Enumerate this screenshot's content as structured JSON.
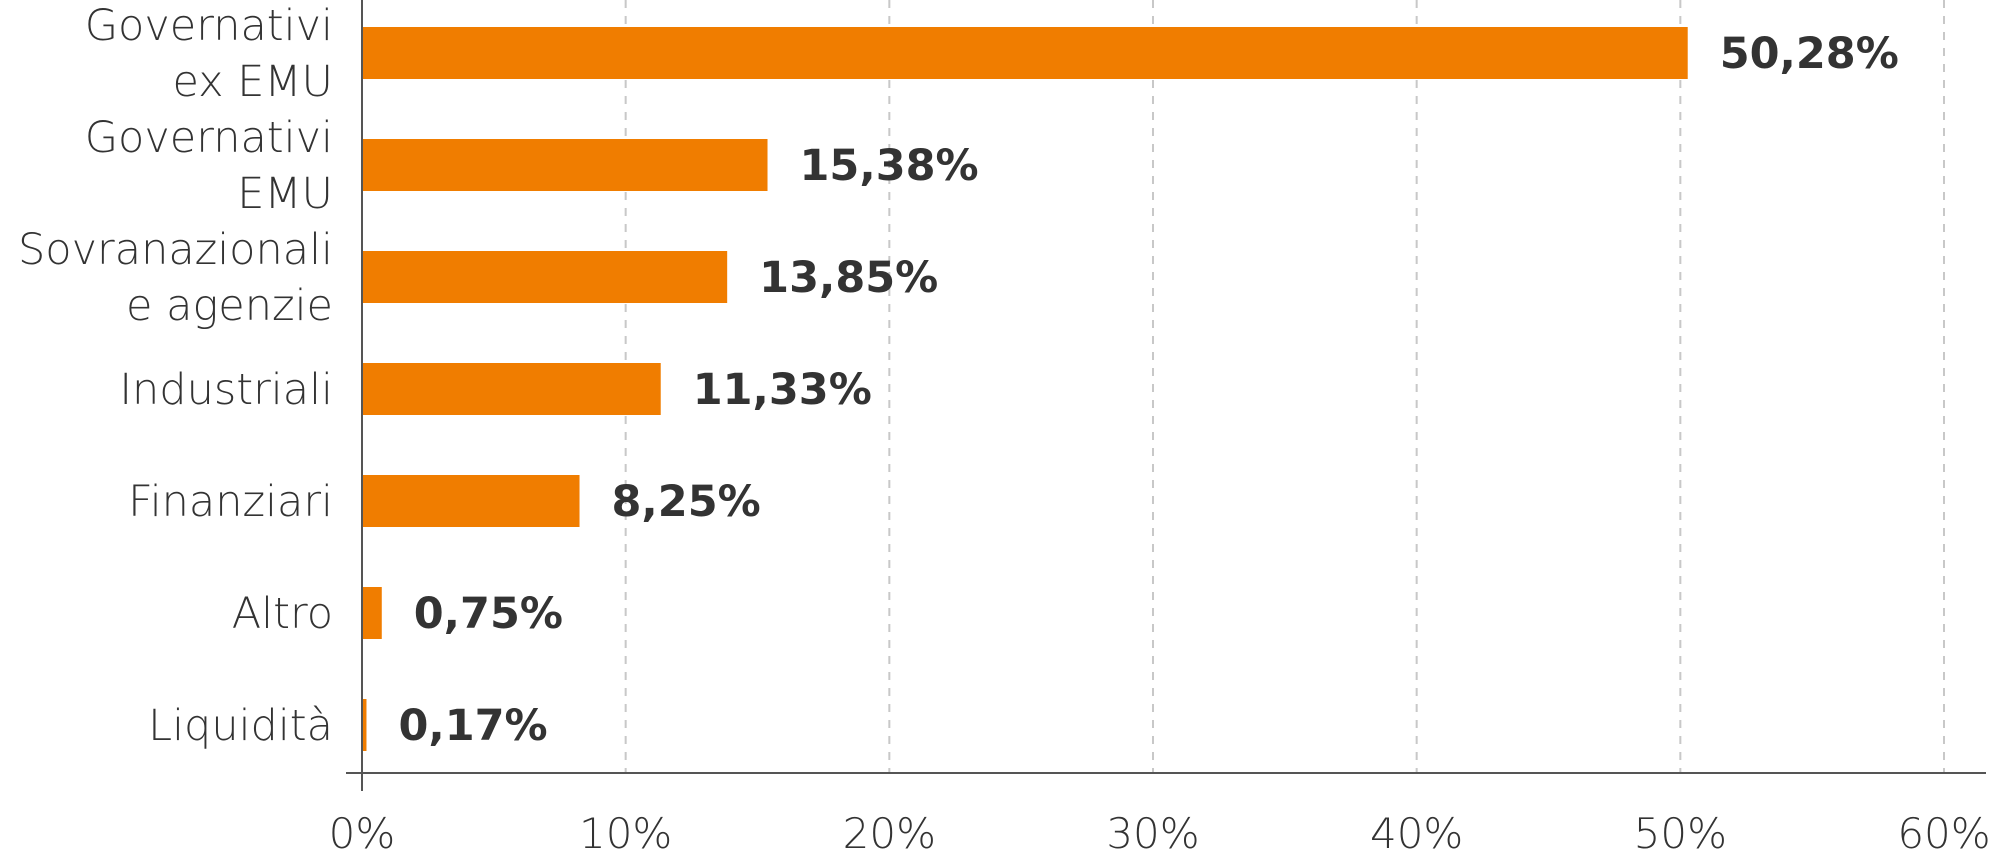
{
  "chart_data": {
    "type": "bar",
    "orientation": "horizontal",
    "categories": [
      [
        "Governativi",
        "ex EMU"
      ],
      [
        "Governativi",
        "EMU"
      ],
      [
        "Sovranazionali",
        "e agenzie"
      ],
      [
        "Industriali"
      ],
      [
        "Finanziari"
      ],
      [
        "Altro"
      ],
      [
        "Liquidità"
      ]
    ],
    "values": [
      50.28,
      15.38,
      13.85,
      11.33,
      8.25,
      0.75,
      0.17
    ],
    "value_labels": [
      "50,28%",
      "15,38%",
      "13,85%",
      "11,33%",
      "8,25%",
      "0,75%",
      "0,17%"
    ],
    "x_ticks": [
      0,
      10,
      20,
      30,
      40,
      50,
      60
    ],
    "x_tick_labels": [
      "0%",
      "10%",
      "20%",
      "30%",
      "40%",
      "50%",
      "60%"
    ],
    "xlim": [
      0,
      60
    ],
    "grid": "vertical dashed",
    "bar_color": "#f07d00",
    "text_color": "#333333",
    "title": "",
    "xlabel": "",
    "ylabel": ""
  }
}
